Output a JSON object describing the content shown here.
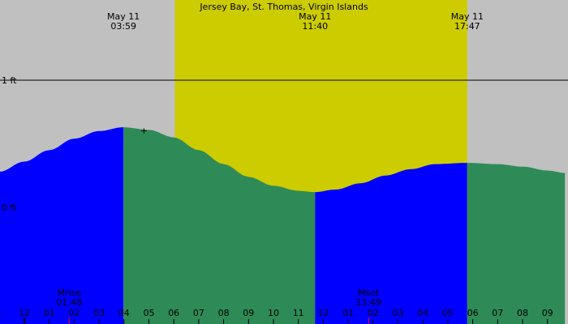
{
  "chart_data": {
    "type": "area",
    "title": "Jersey Bay, St. Thomas, Virgin Islands",
    "xlabel": "",
    "ylabel": "",
    "colors": {
      "background": "#c0c0c0",
      "daylight": "#cccc00",
      "rising": "#0000ff",
      "falling": "#2e8b57",
      "axis": "#000000",
      "moon_tick": "#ff0000"
    },
    "y_ticks": [
      {
        "label": "1 ft",
        "value": 1
      },
      {
        "label": "0 ft",
        "value": 0
      }
    ],
    "hour_ticks": [
      "1",
      "12",
      "01",
      "02",
      "03",
      "04",
      "05",
      "06",
      "07",
      "08",
      "09",
      "10",
      "11",
      "12",
      "01",
      "02",
      "03",
      "04",
      "05",
      "06",
      "07",
      "08",
      "09"
    ],
    "daylight": {
      "start_hour": 6.04,
      "end_hour": 17.78
    },
    "tide_events": [
      {
        "date": "May 11",
        "time": "03:59",
        "hour": 3.98,
        "height": 0.63
      },
      {
        "date": "May 11",
        "time": "11:40",
        "hour": 11.67,
        "height": 0.12
      },
      {
        "date": "May 11",
        "time": "17:47",
        "hour": 17.78,
        "height": 0.35
      }
    ],
    "moon_events": [
      {
        "label": "Mrise",
        "time": "01:48",
        "hour": 1.8
      },
      {
        "label": "Mset",
        "time": "13:49",
        "hour": 13.82
      }
    ],
    "series": [
      {
        "values": [
          {
            "hour": -1.0,
            "height": 0.28
          },
          {
            "hour": 0.0,
            "height": 0.36
          },
          {
            "hour": 1.0,
            "height": 0.45
          },
          {
            "hour": 2.0,
            "height": 0.54
          },
          {
            "hour": 3.0,
            "height": 0.6
          },
          {
            "hour": 3.98,
            "height": 0.63
          },
          {
            "hour": 5.0,
            "height": 0.61
          },
          {
            "hour": 6.0,
            "height": 0.55
          },
          {
            "hour": 7.0,
            "height": 0.45
          },
          {
            "hour": 8.0,
            "height": 0.34
          },
          {
            "hour": 9.0,
            "height": 0.24
          },
          {
            "hour": 10.0,
            "height": 0.17
          },
          {
            "hour": 11.0,
            "height": 0.13
          },
          {
            "hour": 11.67,
            "height": 0.12
          },
          {
            "hour": 12.5,
            "height": 0.14
          },
          {
            "hour": 13.5,
            "height": 0.19
          },
          {
            "hour": 14.5,
            "height": 0.25
          },
          {
            "hour": 15.5,
            "height": 0.3
          },
          {
            "hour": 16.5,
            "height": 0.34
          },
          {
            "hour": 17.78,
            "height": 0.35
          },
          {
            "hour": 19.0,
            "height": 0.34
          },
          {
            "hour": 20.0,
            "height": 0.32
          },
          {
            "hour": 21.0,
            "height": 0.29
          },
          {
            "hour": 21.7,
            "height": 0.27
          }
        ]
      }
    ],
    "ylim": [
      0,
      1
    ],
    "xlim": [
      -1.0,
      21.7
    ]
  }
}
